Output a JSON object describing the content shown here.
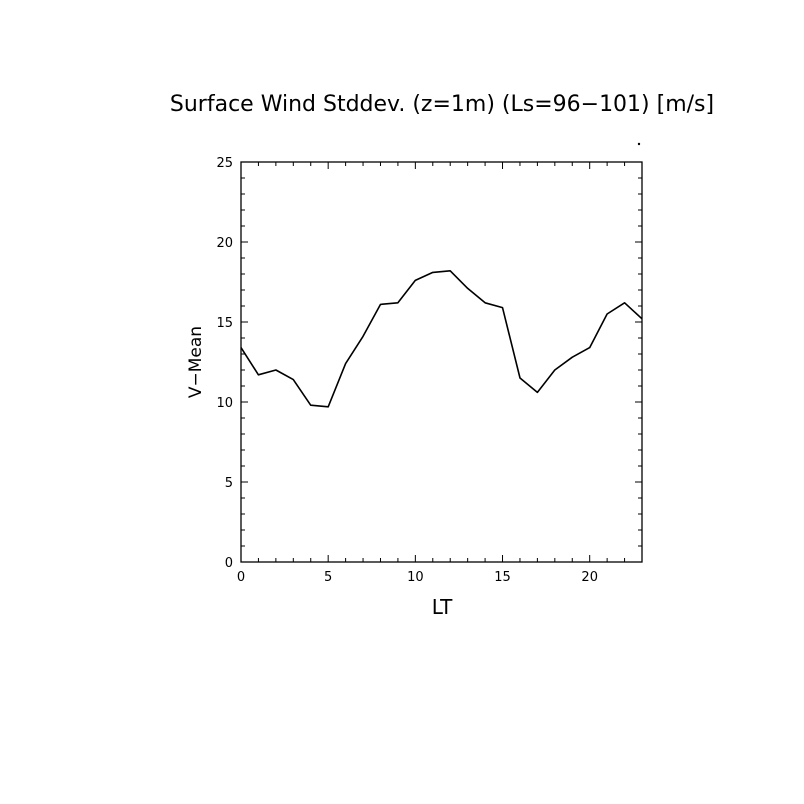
{
  "chart_data": {
    "type": "line",
    "title": "Surface Wind Stddev. (z=1m) (Ls=96−101) [m/s]",
    "xlabel": "LT",
    "ylabel": "V−Mean",
    "xlim": [
      0,
      23
    ],
    "ylim": [
      0,
      25
    ],
    "xticks": [
      0,
      5,
      10,
      15,
      20
    ],
    "yticks": [
      0,
      5,
      10,
      15,
      20,
      25
    ],
    "grid": false,
    "series": [
      {
        "x": [
          0,
          1,
          2,
          3,
          4,
          5,
          6,
          7,
          8,
          9,
          10,
          11,
          12,
          13,
          14,
          15,
          16,
          17,
          18,
          19,
          20,
          21,
          22,
          23
        ],
        "values": [
          13.4,
          11.7,
          12.0,
          11.4,
          9.8,
          9.7,
          12.4,
          14.1,
          16.1,
          16.2,
          17.6,
          18.1,
          18.2,
          17.1,
          16.2,
          15.9,
          11.5,
          10.6,
          12.0,
          12.8,
          13.4,
          15.5,
          16.2,
          15.2
        ],
        "color": "#000000"
      }
    ]
  }
}
